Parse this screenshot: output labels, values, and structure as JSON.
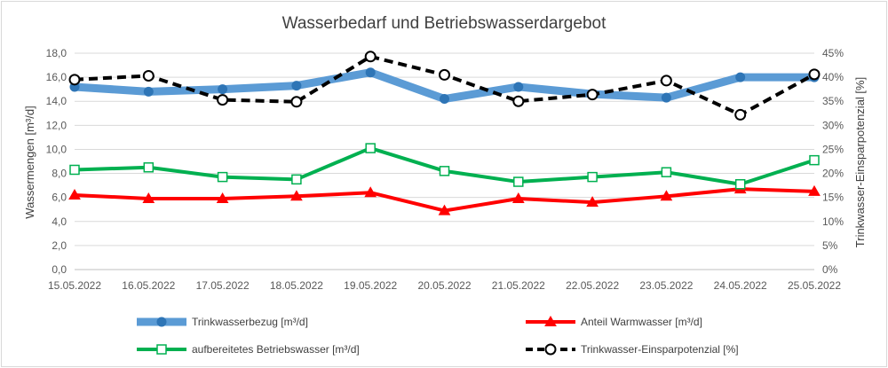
{
  "chart_data": {
    "type": "line",
    "title": "Wasserbedarf und Betriebswasserdargebot",
    "ylabel": "Wassermengen [m³/d]",
    "y2label": "Trinkwasser-Einsparpotenzial [%]",
    "categories": [
      "15.05.2022",
      "16.05.2022",
      "17.05.2022",
      "18.05.2022",
      "19.05.2022",
      "20.05.2022",
      "21.05.2022",
      "22.05.2022",
      "23.05.2022",
      "24.05.2022",
      "25.05.2022"
    ],
    "ylim": [
      0,
      18
    ],
    "yticks": [
      "0,0",
      "2,0",
      "4,0",
      "6,0",
      "8,0",
      "10,0",
      "12,0",
      "14,0",
      "16,0",
      "18,0"
    ],
    "y2lim": [
      0,
      45
    ],
    "y2ticks": [
      "0%",
      "5%",
      "10%",
      "15%",
      "20%",
      "25%",
      "30%",
      "35%",
      "40%",
      "45%"
    ],
    "grid": true,
    "legend_position": "bottom",
    "series": [
      {
        "name": "Trinkwasserbezug [m³/d]",
        "axis": "left",
        "color": "#5b9bd5",
        "marker": "circle",
        "values": [
          15.2,
          14.8,
          15.0,
          15.3,
          16.4,
          14.2,
          15.2,
          14.6,
          14.3,
          16.0,
          16.0
        ]
      },
      {
        "name": "Anteil Warmwasser [m³/d]",
        "axis": "left",
        "color": "#ff0000",
        "marker": "triangle",
        "values": [
          6.2,
          5.9,
          5.9,
          6.1,
          6.4,
          4.9,
          5.9,
          5.6,
          6.1,
          6.7,
          6.5
        ]
      },
      {
        "name": "aufbereitetes Betriebswasser [m³/d]",
        "axis": "left",
        "color": "#00b050",
        "marker": "square",
        "values": [
          8.3,
          8.5,
          7.7,
          7.5,
          10.1,
          8.2,
          7.3,
          7.7,
          8.1,
          7.1,
          9.1
        ]
      },
      {
        "name": "Trinkwasser-Einsparpotenzial [%]",
        "axis": "right",
        "color": "#000000",
        "marker": "open-circle",
        "values": [
          39.5,
          40.3,
          35.3,
          34.9,
          44.3,
          40.5,
          35.0,
          36.4,
          39.3,
          32.2,
          40.6
        ]
      }
    ]
  }
}
